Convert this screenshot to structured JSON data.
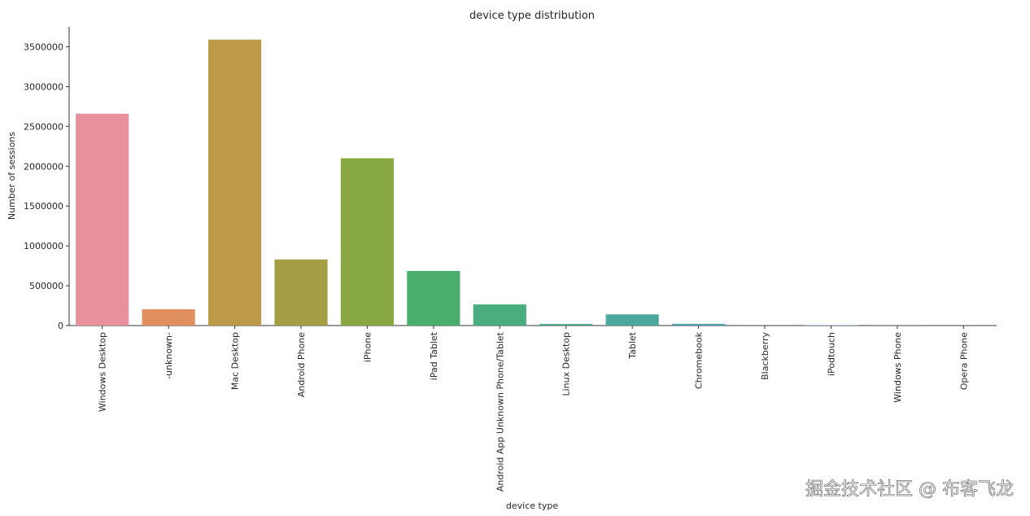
{
  "chart_data": {
    "type": "bar",
    "title": "device type distribution",
    "x_label": "device type",
    "y_label": "Number of sessions",
    "categories": [
      "Windows Desktop",
      "-unknown-",
      "Mac Desktop",
      "Android Phone",
      "iPhone",
      "iPad Tablet",
      "Android App Unknown Phone/Tablet",
      "Linux Desktop",
      "Tablet",
      "Chromebook",
      "Blackberry",
      "iPodtouch",
      "Windows Phone",
      "Opera Phone"
    ],
    "values": [
      2660000,
      205000,
      3590000,
      830000,
      2100000,
      685000,
      265000,
      20000,
      140000,
      22000,
      1000,
      5000,
      1000,
      500
    ],
    "colors": [
      "#e8919c",
      "#e0905f",
      "#bd9a48",
      "#a69e45",
      "#88a844",
      "#4aad6c",
      "#4aad7f",
      "#4ba994",
      "#4ca89f",
      "#4fa5ae",
      "#55a2bf",
      "#7e98d8",
      "#a98ed8",
      "#d284c6"
    ],
    "ylim": [
      0,
      3750000
    ],
    "yticks": [
      0,
      500000,
      1000000,
      1500000,
      2000000,
      2500000,
      3000000,
      3500000
    ]
  },
  "watermark": "掘金技术社区 @ 布客飞龙"
}
